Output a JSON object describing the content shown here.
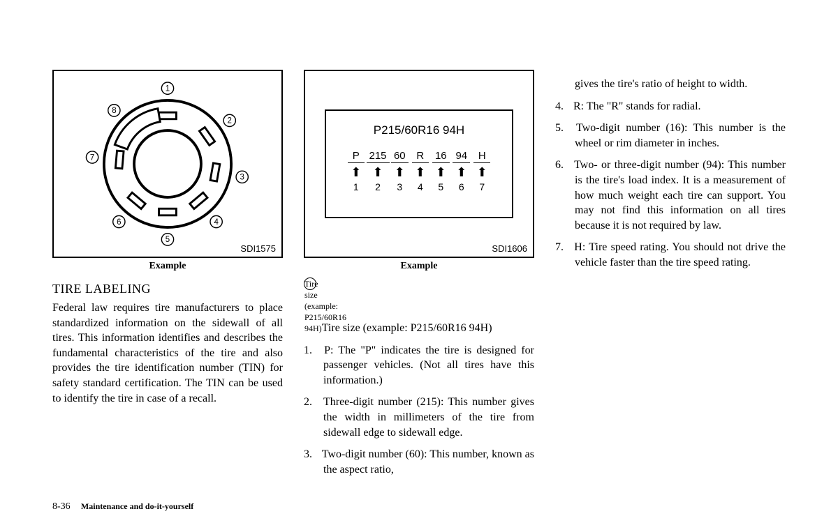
{
  "figure1": {
    "id": "SDI1575",
    "caption": "Example",
    "ring_outer_r": 95,
    "ring_inner_r": 50,
    "stroke_width": 4,
    "labels": [
      {
        "n": "1",
        "angle": -90
      },
      {
        "n": "2",
        "angle": -35
      },
      {
        "n": "3",
        "angle": 10
      },
      {
        "n": "4",
        "angle": 50
      },
      {
        "n": "5",
        "angle": 90
      },
      {
        "n": "6",
        "angle": 130
      },
      {
        "n": "7",
        "angle": 185
      },
      {
        "n": "8",
        "angle": 225,
        "arc": true
      }
    ]
  },
  "figure2": {
    "id": "SDI1606",
    "caption": "Example",
    "title": "P215/60R16 94H",
    "fields": [
      {
        "label": "P",
        "num": "1"
      },
      {
        "label": "215",
        "num": "2"
      },
      {
        "label": "60",
        "num": "3"
      },
      {
        "label": "R",
        "num": "4"
      },
      {
        "label": "16",
        "num": "5"
      },
      {
        "label": "94",
        "num": "6"
      },
      {
        "label": "H",
        "num": "7"
      }
    ]
  },
  "heading": "TIRE LABELING",
  "intro": "Federal law requires tire manufacturers to place standardized information on the sidewall of all tires. This information identifies and describes the fundamental characteristics of the tire and also provides the tire identification number (TIN) for safety standard certification. The TIN can be used to identify the tire in case of a recall.",
  "list_col2": [
    {
      "marker": "①",
      "text": "Tire size (example: P215/60R16 94H)"
    },
    {
      "marker": "1.",
      "text": "P: The \"P\" indicates the tire is designed for passenger vehicles. (Not all tires have this information.)"
    },
    {
      "marker": "2.",
      "text": "Three-digit number (215): This number gives the width in millimeters of the tire from sidewall edge to sidewall edge."
    },
    {
      "marker": "3.",
      "text": "Two-digit number (60): This number, known as the aspect ratio,"
    }
  ],
  "list_col3": [
    {
      "marker": "",
      "text": "gives the tire's ratio of height to width."
    },
    {
      "marker": "4.",
      "text": "R: The \"R\" stands for radial."
    },
    {
      "marker": "5.",
      "text": "Two-digit number (16): This number is the wheel or rim diameter in inches."
    },
    {
      "marker": "6.",
      "text": "Two- or three-digit number (94): This number is the tire's load index. It is a measurement of how much weight each tire can support. You may not find this information on all tires because it is not required by law."
    },
    {
      "marker": "7.",
      "text": "H: Tire speed rating. You should not drive the vehicle faster than the tire speed rating."
    }
  ],
  "footer": {
    "page": "8-36",
    "section": "Maintenance and do-it-yourself"
  }
}
